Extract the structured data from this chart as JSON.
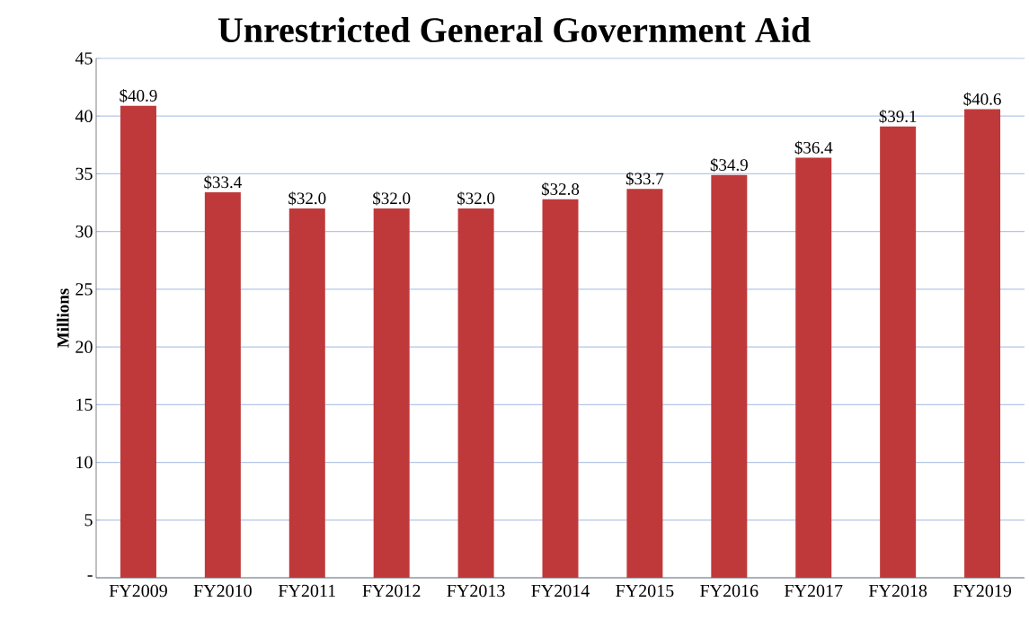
{
  "chart_data": {
    "type": "bar",
    "title": "Unrestricted General Government Aid",
    "ylabel": "Millions",
    "categories": [
      "FY2009",
      "FY2010",
      "FY2011",
      "FY2012",
      "FY2013",
      "FY2014",
      "FY2015",
      "FY2016",
      "FY2017",
      "FY2018",
      "FY2019"
    ],
    "values": [
      40.9,
      33.4,
      32.0,
      32.0,
      32.0,
      32.8,
      33.7,
      34.9,
      36.4,
      39.1,
      40.6
    ],
    "value_labels": [
      "$40.9",
      "$33.4",
      "$32.0",
      "$32.0",
      "$32.0",
      "$32.8",
      "$33.7",
      "$34.9",
      "$36.4",
      "$39.1",
      "$40.6"
    ],
    "color": "#c0393a",
    "ylim": [
      0,
      45
    ],
    "yticks": [
      {
        "value": 0,
        "label": "-"
      },
      5,
      10,
      15,
      20,
      25,
      30,
      35,
      40,
      45
    ],
    "grid": "y"
  }
}
